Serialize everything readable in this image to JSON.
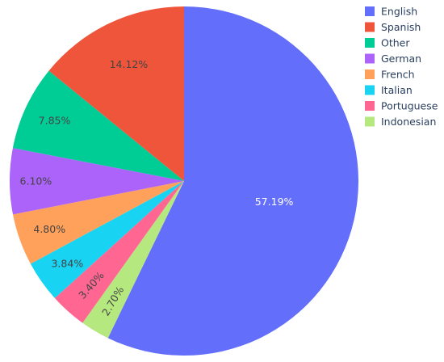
{
  "chart_data": {
    "type": "pie",
    "direction": "clockwise",
    "start": "top",
    "legend_position": "top-right",
    "slices": [
      {
        "label": "English",
        "percent": 57.19,
        "percent_text": "57.19%",
        "color": "#636efa",
        "text_color": "#ffffff"
      },
      {
        "label": "Indonesian",
        "percent": 2.7,
        "percent_text": "2.70%",
        "color": "#b6e880",
        "text_color": "#444444",
        "rotate_label": true
      },
      {
        "label": "Portuguese",
        "percent": 3.4,
        "percent_text": "3.40%",
        "color": "#ff6692",
        "text_color": "#444444",
        "rotate_label": true
      },
      {
        "label": "Italian",
        "percent": 3.84,
        "percent_text": "3.84%",
        "color": "#19d3f3",
        "text_color": "#444444"
      },
      {
        "label": "French",
        "percent": 4.8,
        "percent_text": "4.80%",
        "color": "#ffa15a",
        "text_color": "#444444"
      },
      {
        "label": "German",
        "percent": 6.1,
        "percent_text": "6.10%",
        "color": "#ab63fa",
        "text_color": "#444444"
      },
      {
        "label": "Other",
        "percent": 7.85,
        "percent_text": "7.85%",
        "color": "#00cc96",
        "text_color": "#444444"
      },
      {
        "label": "Spanish",
        "percent": 14.12,
        "percent_text": "14.12%",
        "color": "#ef553b",
        "text_color": "#444444"
      }
    ],
    "legend": [
      {
        "label": "English",
        "color": "#636efa"
      },
      {
        "label": "Spanish",
        "color": "#ef553b"
      },
      {
        "label": "Other",
        "color": "#00cc96"
      },
      {
        "label": "German",
        "color": "#ab63fa"
      },
      {
        "label": "French",
        "color": "#ffa15a"
      },
      {
        "label": "Italian",
        "color": "#19d3f3"
      },
      {
        "label": "Portuguese",
        "color": "#ff6692"
      },
      {
        "label": "Indonesian",
        "color": "#b6e880"
      }
    ]
  }
}
